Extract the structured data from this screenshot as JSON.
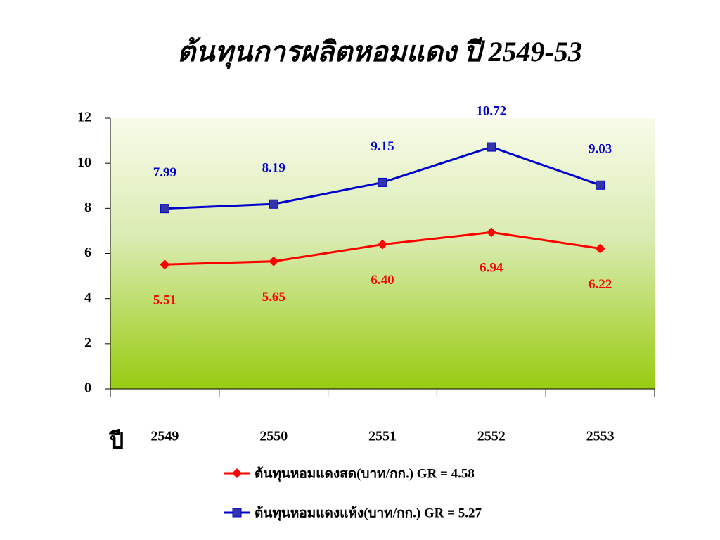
{
  "chart_data": {
    "type": "line",
    "title": "ต้นทุนการผลิตหอมแดง ปี 2549-53",
    "x_label": "ปี",
    "categories": [
      "2549",
      "2550",
      "2551",
      "2552",
      "2553"
    ],
    "series": [
      {
        "name": "ต้นทุนหอมแดงสด(บาท/กก.) GR = 4.58",
        "color": "#ff0000",
        "marker": "diamond",
        "label_position": "below",
        "values": [
          5.51,
          5.65,
          6.4,
          6.94,
          6.22
        ],
        "value_labels": [
          "5.51",
          "5.65",
          "6.40",
          "6.94",
          "6.22"
        ]
      },
      {
        "name": "ต้นทุนหอมแดงแห้ง(บาท/กก.) GR =  5.27",
        "color": "#0000cc",
        "marker": "square",
        "label_position": "above",
        "values": [
          7.99,
          8.19,
          9.15,
          10.72,
          9.03
        ],
        "value_labels": [
          "7.99",
          "8.19",
          "9.15",
          "10.72",
          "9.03"
        ]
      }
    ],
    "ylim": [
      0,
      12
    ],
    "yticks": [
      0,
      2,
      4,
      6,
      8,
      10,
      12
    ],
    "legend": "bottom"
  }
}
